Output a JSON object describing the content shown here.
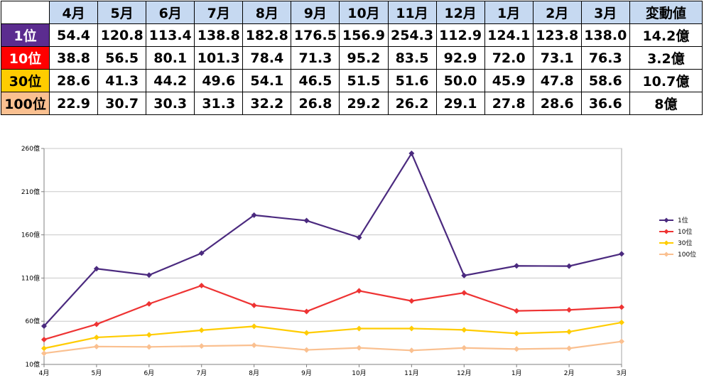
{
  "table": {
    "months": [
      "4月",
      "5月",
      "6月",
      "7月",
      "8月",
      "9月",
      "10月",
      "11月",
      "12月",
      "1月",
      "2月",
      "3月"
    ],
    "change_header": "変動値",
    "rows": [
      {
        "rank": "1位",
        "color": "#5b2c8f",
        "text_color": "#ffffff",
        "values": [
          "54.4",
          "120.8",
          "113.4",
          "138.8",
          "182.8",
          "176.5",
          "156.9",
          "254.3",
          "112.9",
          "124.1",
          "123.8",
          "138.0"
        ],
        "change": "14.2億"
      },
      {
        "rank": "10位",
        "color": "#ff0000",
        "text_color": "#ffffff",
        "values": [
          "38.8",
          "56.5",
          "80.1",
          "101.3",
          "78.4",
          "71.3",
          "95.2",
          "83.5",
          "92.9",
          "72.0",
          "73.1",
          "76.3"
        ],
        "change": "3.2億"
      },
      {
        "rank": "30位",
        "color": "#ffcc00",
        "text_color": "#000000",
        "values": [
          "28.6",
          "41.3",
          "44.2",
          "49.6",
          "54.1",
          "46.5",
          "51.5",
          "51.6",
          "50.0",
          "45.9",
          "47.8",
          "58.6"
        ],
        "change": "10.7億"
      },
      {
        "rank": "100位",
        "color": "#fac090",
        "text_color": "#000000",
        "values": [
          "22.9",
          "30.7",
          "30.3",
          "31.3",
          "32.2",
          "26.8",
          "29.2",
          "26.2",
          "29.1",
          "27.8",
          "28.6",
          "36.6"
        ],
        "change": "8億"
      }
    ]
  },
  "chart_data": {
    "type": "line",
    "categories": [
      "4月",
      "5月",
      "6月",
      "7月",
      "8月",
      "9月",
      "10月",
      "11月",
      "12月",
      "1月",
      "2月",
      "3月"
    ],
    "y_ticks": [
      10,
      60,
      110,
      160,
      210,
      260
    ],
    "y_tick_labels": [
      "10億",
      "60億",
      "110億",
      "160億",
      "210億",
      "260億"
    ],
    "ylim": [
      10,
      260
    ],
    "grid": true,
    "legend_position": "right",
    "series": [
      {
        "name": "1位",
        "color": "#4b2a7f",
        "values": [
          54.4,
          120.8,
          113.4,
          138.8,
          182.8,
          176.5,
          156.9,
          254.3,
          112.9,
          124.1,
          123.8,
          138.0
        ]
      },
      {
        "name": "10位",
        "color": "#ee3333",
        "values": [
          38.8,
          56.5,
          80.1,
          101.3,
          78.4,
          71.3,
          95.2,
          83.5,
          92.9,
          72.0,
          73.1,
          76.3
        ]
      },
      {
        "name": "30位",
        "color": "#ffcc00",
        "values": [
          28.6,
          41.3,
          44.2,
          49.6,
          54.1,
          46.5,
          51.5,
          51.6,
          50.0,
          45.9,
          47.8,
          58.6
        ]
      },
      {
        "name": "100位",
        "color": "#fac090",
        "values": [
          22.9,
          30.7,
          30.3,
          31.3,
          32.2,
          26.8,
          29.2,
          26.2,
          29.1,
          27.8,
          28.6,
          36.6
        ]
      }
    ]
  }
}
